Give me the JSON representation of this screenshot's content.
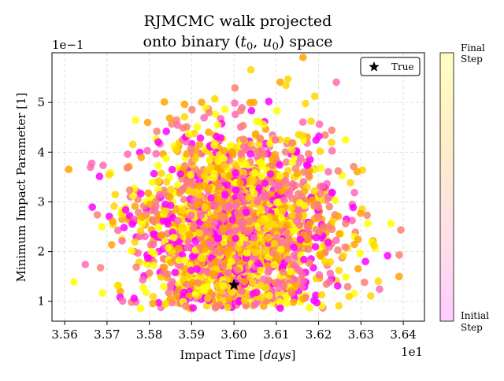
{
  "chart_data": {
    "type": "scatter",
    "title_line1": "RJMCMC walk projected",
    "title_line2_prefix": "onto binary (",
    "title_line2_t": "t",
    "title_line2_t_sub": "0",
    "title_line2_comma": ", ",
    "title_line2_u": "u",
    "title_line2_u_sub": "0",
    "title_line2_suffix": ") space",
    "xlabel_prefix": "Impact Time [",
    "xlabel_italic": "days",
    "xlabel_suffix": "]",
    "ylabel": "Minimum Impact Parameter [1]",
    "x_offset_text": "1e1",
    "y_offset_text": "1e−1",
    "xlim": [
      3.557,
      3.645
    ],
    "ylim": [
      0.6,
      6.0
    ],
    "x_ticks": [
      3.56,
      3.57,
      3.58,
      3.59,
      3.6,
      3.61,
      3.62,
      3.63,
      3.64
    ],
    "x_tick_labels": [
      "3.56",
      "3.57",
      "3.58",
      "3.59",
      "3.60",
      "3.61",
      "3.62",
      "3.63",
      "3.64"
    ],
    "y_ticks": [
      1,
      2,
      3,
      4,
      5
    ],
    "y_tick_labels": [
      "1",
      "2",
      "3",
      "4",
      "5"
    ],
    "grid": true,
    "legend": {
      "placement": "top-right",
      "entries": [
        {
          "label": "True",
          "marker": "star",
          "color": "#000000"
        }
      ]
    },
    "true_point": {
      "x": 3.6,
      "y": 1.33
    },
    "walk": {
      "n_points": 2200,
      "x_center": 3.601,
      "x_spread": 0.0115,
      "y_center": 2.5,
      "y_spread": 1.0,
      "y_min": 0.85
    },
    "colormap": [
      "#ff00ff",
      "#ff69b4",
      "#fa8072",
      "#ffa500",
      "#ffd700",
      "#ffff00"
    ],
    "colorbar": {
      "top_label_line1": "Final",
      "top_label_line2": "Step",
      "bottom_label_line1": "Initial",
      "bottom_label_line2": "Step",
      "gradient": [
        "#ffccff",
        "#ffe0e6",
        "#ffedc8",
        "#ffffc0"
      ]
    }
  }
}
